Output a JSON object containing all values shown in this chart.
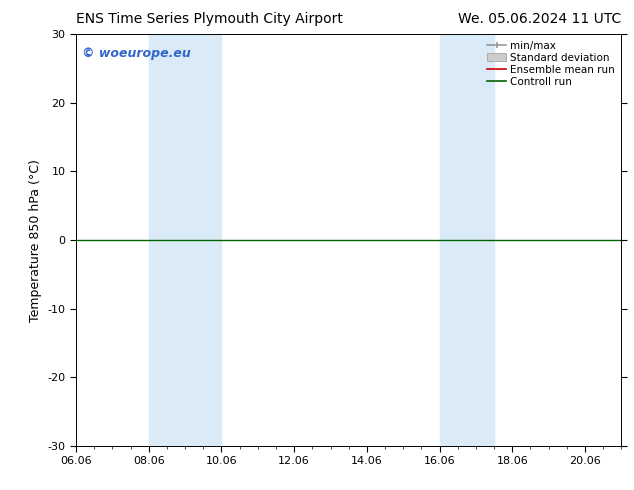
{
  "title_left": "ENS Time Series Plymouth City Airport",
  "title_right": "We. 05.06.2024 11 UTC",
  "ylabel": "Temperature 850 hPa (°C)",
  "ylim": [
    -30,
    30
  ],
  "yticks": [
    -30,
    -20,
    -10,
    0,
    10,
    20,
    30
  ],
  "xlim": [
    0,
    15
  ],
  "xtick_labels": [
    "06.06",
    "08.06",
    "10.06",
    "12.06",
    "14.06",
    "16.06",
    "18.06",
    "20.06"
  ],
  "xtick_positions": [
    0,
    2,
    4,
    6,
    8,
    10,
    12,
    14
  ],
  "shaded_bands": [
    {
      "x_start": 2,
      "x_end": 4
    },
    {
      "x_start": 10,
      "x_end": 11.5
    }
  ],
  "shaded_color": "#daeaf7",
  "hline_y": 0,
  "control_run_color": "#006400",
  "ensemble_mean_color": "#cc0000",
  "minmax_color": "#999999",
  "stddev_color": "#cccccc",
  "watermark_text": "© woeurope.eu",
  "watermark_color": "#3366cc",
  "background_color": "#ffffff",
  "legend_entries": [
    "min/max",
    "Standard deviation",
    "Ensemble mean run",
    "Controll run"
  ],
  "legend_colors": [
    "#999999",
    "#cccccc",
    "#cc0000",
    "#006400"
  ],
  "title_fontsize": 10,
  "ylabel_fontsize": 9,
  "tick_fontsize": 8,
  "legend_fontsize": 7.5,
  "watermark_fontsize": 9
}
